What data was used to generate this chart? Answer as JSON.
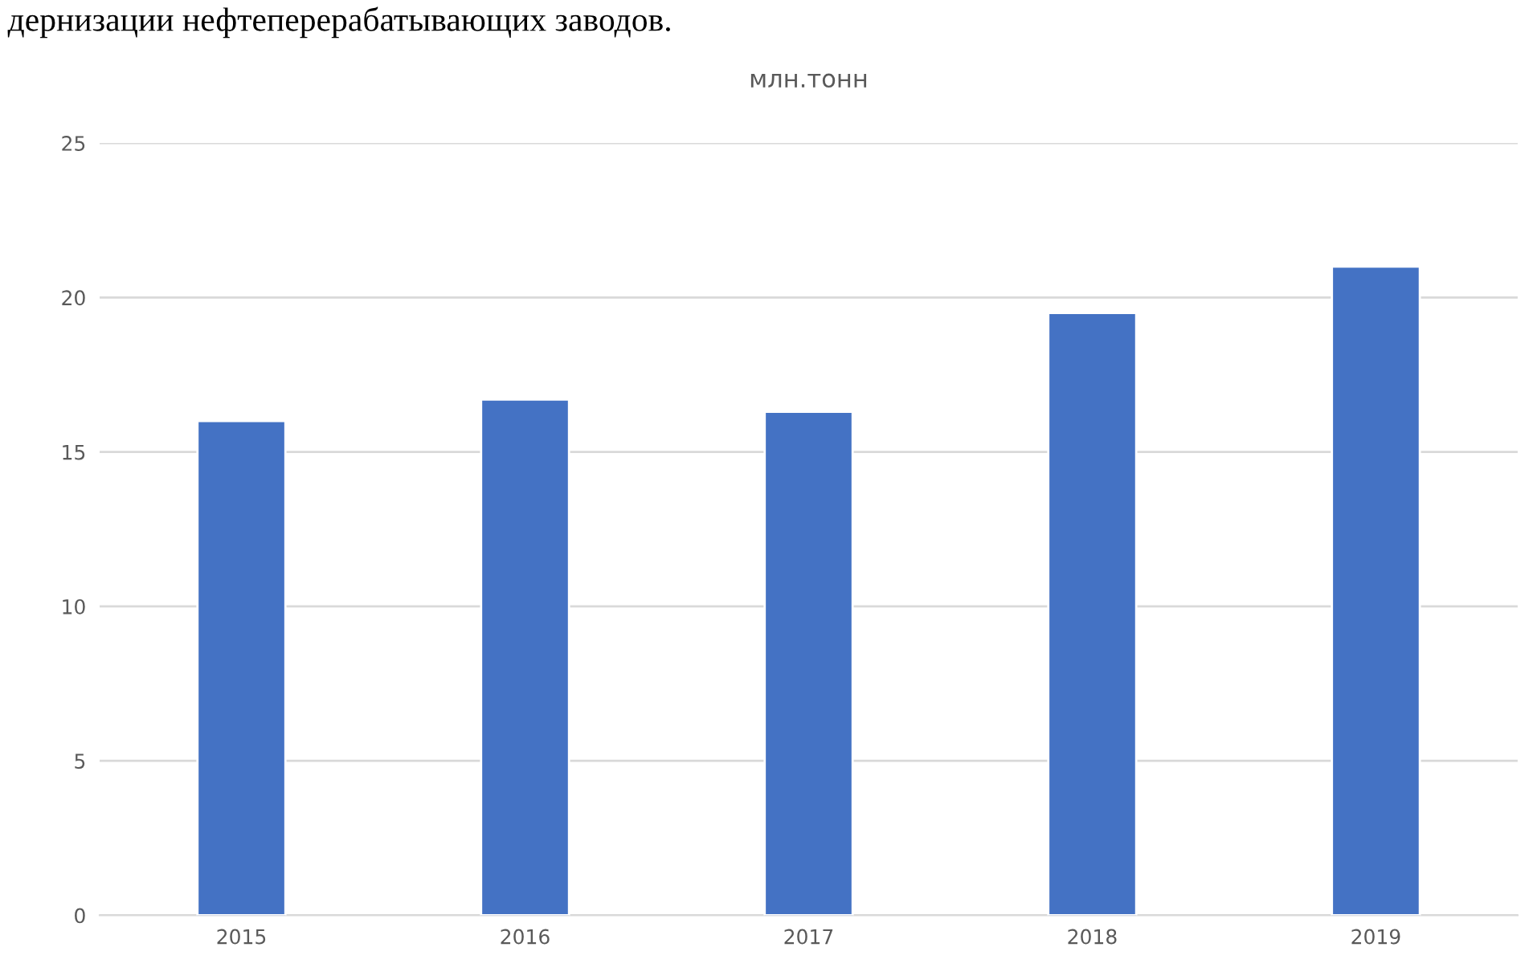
{
  "chart_data": {
    "type": "bar",
    "title": "млн.тонн",
    "categories": [
      "2015",
      "2016",
      "2017",
      "2018",
      "2019"
    ],
    "values": [
      16.0,
      16.7,
      16.3,
      19.5,
      21.0
    ],
    "color": "#4472c4",
    "ylim": [
      0,
      25
    ],
    "yticks": [
      0,
      5,
      10,
      15,
      20,
      25
    ],
    "grid": "y",
    "annotations": [
      "дернизации нефтеперерабатывающих заводов."
    ]
  }
}
